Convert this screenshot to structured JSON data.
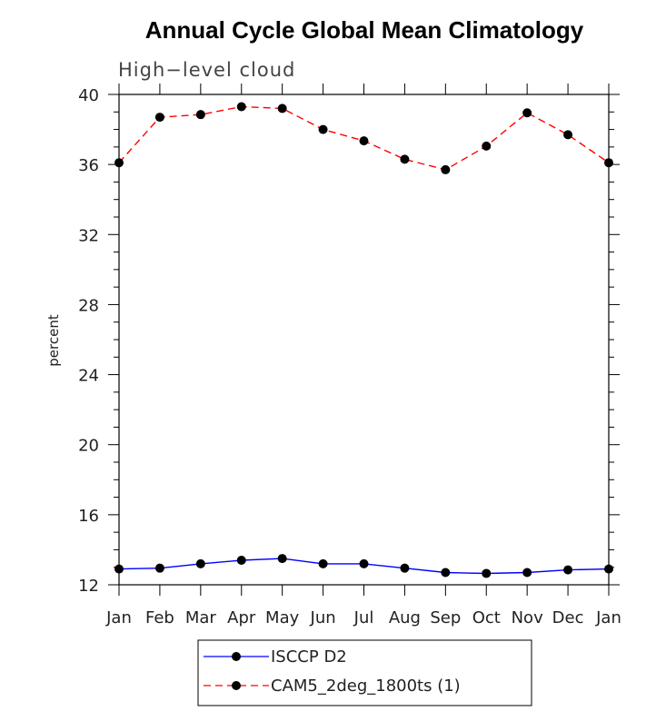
{
  "chart_data": {
    "type": "line",
    "title": "Annual Cycle Global Mean Climatology",
    "subtitle": "High−level cloud",
    "ylabel": "percent",
    "xlabel": "",
    "categories": [
      "Jan",
      "Feb",
      "Mar",
      "Apr",
      "May",
      "Jun",
      "Jul",
      "Aug",
      "Sep",
      "Oct",
      "Nov",
      "Dec",
      "Jan"
    ],
    "ylim": [
      12,
      40
    ],
    "yticks": [
      12,
      16,
      20,
      24,
      28,
      32,
      36,
      40
    ],
    "grid": false,
    "legend_position": "bottom-center",
    "series": [
      {
        "name": "ISCCP D2",
        "color": "#0000ff",
        "line_style": "solid",
        "marker": "filled-circle",
        "values": [
          12.9,
          12.95,
          13.2,
          13.4,
          13.5,
          13.2,
          13.2,
          12.95,
          12.7,
          12.65,
          12.7,
          12.85,
          12.9
        ]
      },
      {
        "name": "CAM5_2deg_1800ts (1)",
        "color": "#ff0000",
        "line_style": "dashed",
        "marker": "filled-circle",
        "values": [
          36.1,
          38.7,
          38.85,
          39.3,
          39.2,
          38.0,
          37.35,
          36.3,
          35.7,
          37.05,
          38.95,
          37.7,
          36.1
        ]
      }
    ]
  }
}
